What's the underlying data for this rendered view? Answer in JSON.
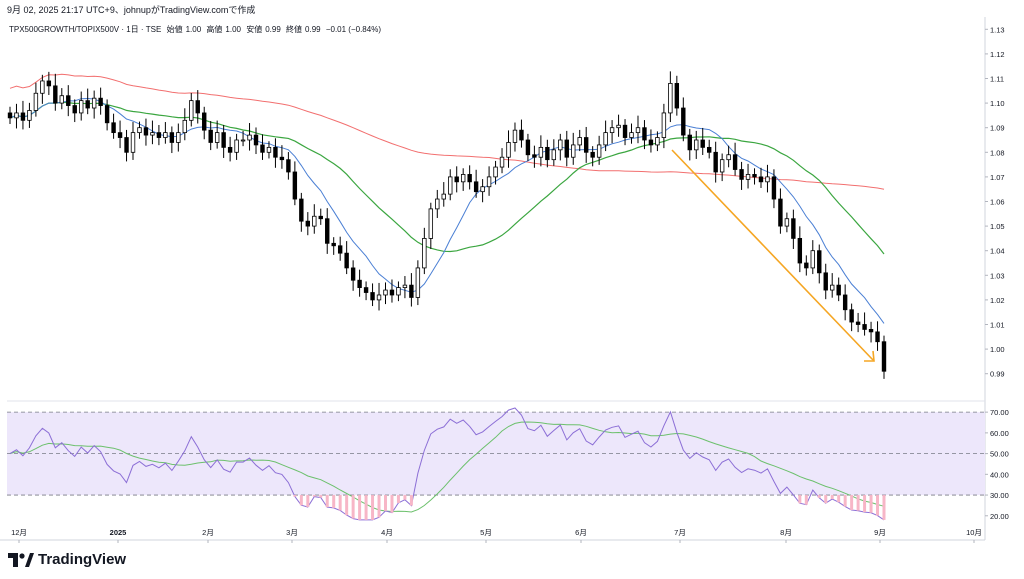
{
  "header": {
    "title_line": "9月 02, 2025 21:17 UTC+9、johnupがTradingView.comで作成"
  },
  "legend": {
    "symbol": "TPX500GROWTH/TOPIX500V · 1日 · TSE",
    "open_label": "始値",
    "open": "1.00",
    "high_label": "高値",
    "high": "1.00",
    "low_label": "安値",
    "low": "0.99",
    "close_label": "終値",
    "close": "0.99",
    "change": "−0.01 (−0.84%)"
  },
  "footer": {
    "brand": "TradingView"
  },
  "colors": {
    "up": "#ffffff",
    "down": "#000000",
    "ma_fast": "#4a7fd4",
    "ma_mid": "#3ba640",
    "ma_slow": "#f26f6f",
    "rsi": "#8c6fd6",
    "rsi_ma": "#6cc06c",
    "arrow": "#f5a623",
    "rsi_band": "#ede7fb"
  },
  "chart_data": [
    {
      "type": "candlestick",
      "name": "price",
      "y_ticks": [
        "1.13",
        "1.12",
        "1.11",
        "1.10",
        "1.09",
        "1.08",
        "1.07",
        "1.06",
        "1.05",
        "1.04",
        "1.03",
        "1.02",
        "1.01",
        "1.00",
        "0.99"
      ],
      "ylim": [
        0.985,
        1.135
      ],
      "x_labels": [
        "12月",
        "2025",
        "2月",
        "3月",
        "4月",
        "5月",
        "6月",
        "7月",
        "8月",
        "9月",
        "10月"
      ],
      "closes": [
        1.094,
        1.096,
        1.093,
        1.097,
        1.104,
        1.109,
        1.107,
        1.1,
        1.103,
        1.099,
        1.096,
        1.101,
        1.098,
        1.102,
        1.099,
        1.092,
        1.088,
        1.086,
        1.08,
        1.088,
        1.09,
        1.087,
        1.088,
        1.086,
        1.088,
        1.084,
        1.088,
        1.093,
        1.101,
        1.096,
        1.089,
        1.084,
        1.088,
        1.082,
        1.08,
        1.085,
        1.085,
        1.087,
        1.083,
        1.08,
        1.082,
        1.078,
        1.077,
        1.072,
        1.061,
        1.052,
        1.05,
        1.054,
        1.053,
        1.043,
        1.042,
        1.039,
        1.033,
        1.028,
        1.025,
        1.023,
        1.02,
        1.022,
        1.024,
        1.022,
        1.025,
        1.026,
        1.021,
        1.033,
        1.045,
        1.057,
        1.061,
        1.063,
        1.07,
        1.068,
        1.071,
        1.068,
        1.064,
        1.066,
        1.07,
        1.074,
        1.078,
        1.084,
        1.089,
        1.085,
        1.079,
        1.078,
        1.082,
        1.077,
        1.081,
        1.085,
        1.078,
        1.083,
        1.086,
        1.08,
        1.078,
        1.083,
        1.088,
        1.09,
        1.091,
        1.086,
        1.088,
        1.09,
        1.085,
        1.083,
        1.086,
        1.096,
        1.108,
        1.098,
        1.087,
        1.081,
        1.085,
        1.082,
        1.08,
        1.072,
        1.077,
        1.079,
        1.073,
        1.069,
        1.071,
        1.07,
        1.068,
        1.07,
        1.061,
        1.05,
        1.053,
        1.045,
        1.035,
        1.033,
        1.04,
        1.031,
        1.024,
        1.026,
        1.022,
        1.016,
        1.011,
        1.01,
        1.008,
        1.007,
        1.003,
        0.991
      ]
    },
    {
      "type": "line",
      "name": "RSI",
      "y_ticks": [
        "70.00",
        "60.00",
        "50.00",
        "40.00",
        "30.00",
        "20.00"
      ],
      "ylim": [
        17,
        72
      ],
      "levels": [
        70,
        50,
        30
      ]
    }
  ]
}
